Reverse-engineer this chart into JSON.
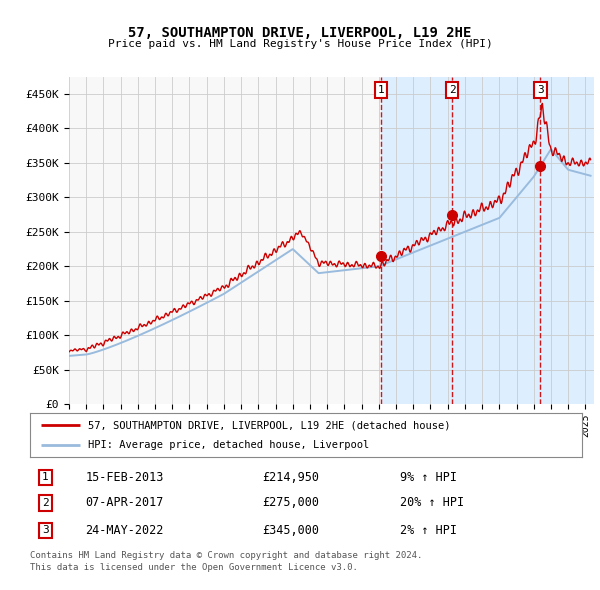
{
  "title": "57, SOUTHAMPTON DRIVE, LIVERPOOL, L19 2HE",
  "subtitle": "Price paid vs. HM Land Registry's House Price Index (HPI)",
  "background_color": "#ffffff",
  "plot_bg_color": "#f8f8f8",
  "grid_color": "#cccccc",
  "sale_color": "#cc0000",
  "hpi_color": "#99bbdd",
  "vline_color": "#cc0000",
  "shade_color": "#ddeeff",
  "ylim": [
    0,
    475000
  ],
  "yticks": [
    0,
    50000,
    100000,
    150000,
    200000,
    250000,
    300000,
    350000,
    400000,
    450000
  ],
  "ytick_labels": [
    "£0",
    "£50K",
    "£100K",
    "£150K",
    "£200K",
    "£250K",
    "£300K",
    "£350K",
    "£400K",
    "£450K"
  ],
  "xlim_start": 1995,
  "xlim_end": 2025.5,
  "sales": [
    {
      "date_num": 2013.12,
      "price": 214950,
      "label": "1"
    },
    {
      "date_num": 2017.27,
      "price": 275000,
      "label": "2"
    },
    {
      "date_num": 2022.39,
      "price": 345000,
      "label": "3"
    }
  ],
  "sale_dates": [
    "15-FEB-2013",
    "07-APR-2017",
    "24-MAY-2022"
  ],
  "sale_prices": [
    "£214,950",
    "£275,000",
    "£345,000"
  ],
  "sale_pct": [
    "9% ↑ HPI",
    "20% ↑ HPI",
    "2% ↑ HPI"
  ],
  "legend_sale": "57, SOUTHAMPTON DRIVE, LIVERPOOL, L19 2HE (detached house)",
  "legend_hpi": "HPI: Average price, detached house, Liverpool",
  "footer1": "Contains HM Land Registry data © Crown copyright and database right 2024.",
  "footer2": "This data is licensed under the Open Government Licence v3.0."
}
